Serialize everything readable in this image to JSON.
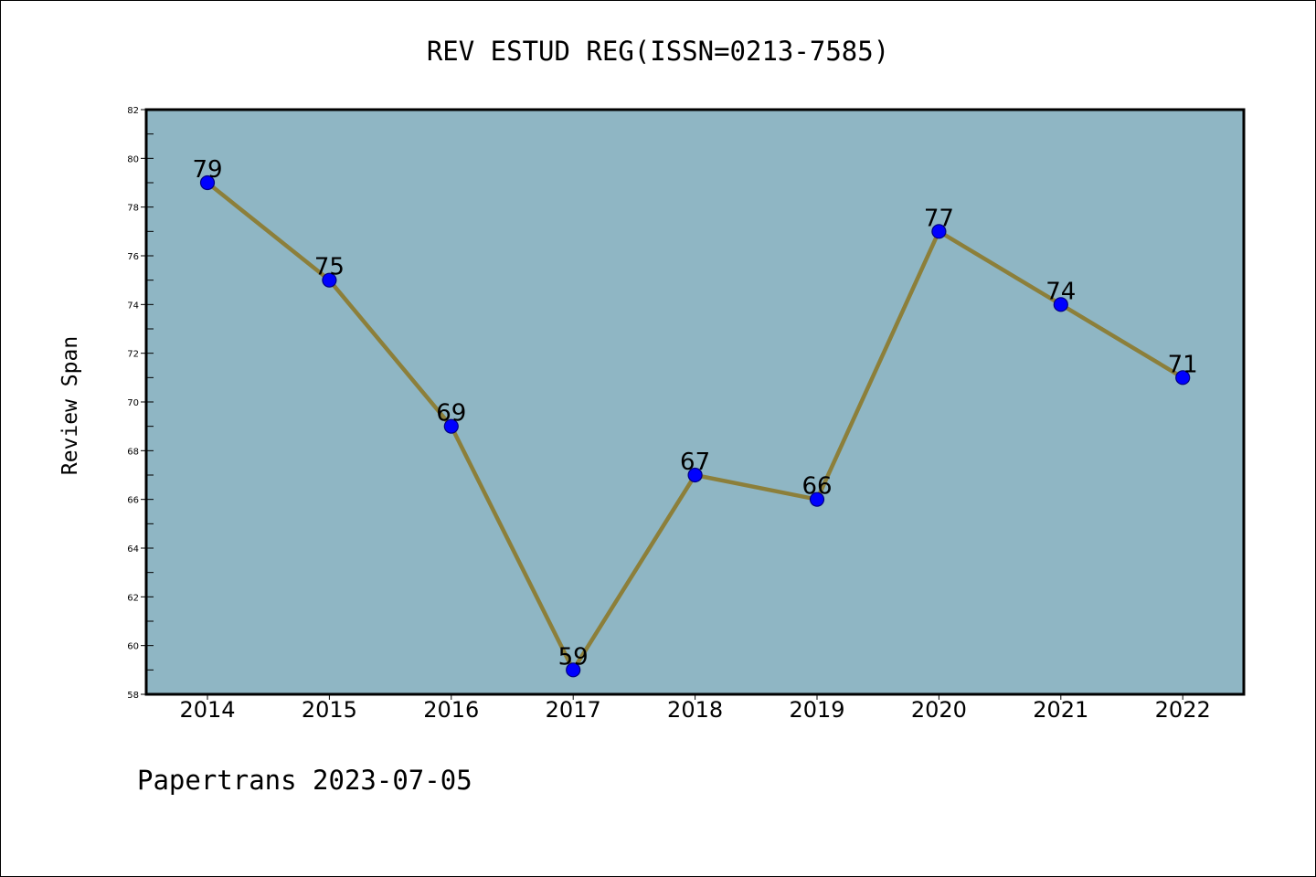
{
  "chart_data": {
    "type": "line",
    "title": "REV ESTUD REG(ISSN=0213-7585)",
    "xlabel": "",
    "ylabel": "Review Span",
    "footer": "Papertrans 2023-07-05",
    "categories": [
      "2014",
      "2015",
      "2016",
      "2017",
      "2018",
      "2019",
      "2020",
      "2021",
      "2022"
    ],
    "series": [
      {
        "values": [
          79,
          75,
          69,
          59,
          67,
          66,
          77,
          74,
          71
        ]
      }
    ],
    "y_ticks": [
      "58",
      "60",
      "62",
      "64",
      "66",
      "68",
      "70",
      "72",
      "74",
      "76",
      "78",
      "80",
      "82"
    ],
    "ylim": [
      58,
      82
    ],
    "grid": false,
    "legend": "none",
    "colors": {
      "plot_background": "#8fb6c4",
      "line": "#8c7f3a",
      "marker_fill": "#0000ff",
      "marker_edge": "#000080",
      "axes_frame": "#000000",
      "text": "#000000"
    }
  }
}
